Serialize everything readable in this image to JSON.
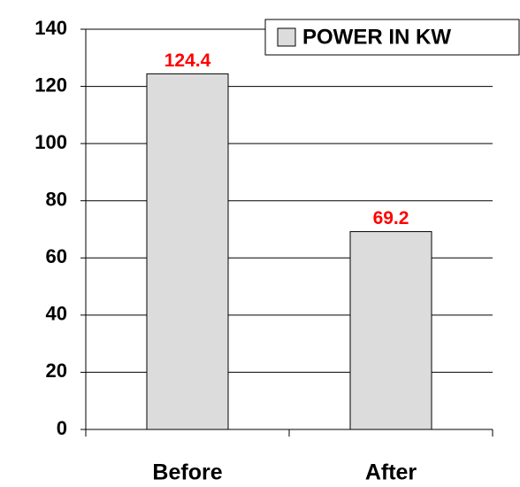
{
  "chart_data": {
    "type": "bar",
    "categories": [
      "Before",
      "After"
    ],
    "series": [
      {
        "name": "POWER IN KW",
        "color": "#dcdcdc",
        "values": [
          124.4,
          69.2
        ]
      }
    ],
    "ylim": [
      0,
      140
    ],
    "yticks": [
      0,
      20,
      40,
      60,
      80,
      100,
      120,
      140
    ],
    "grid": true,
    "legend": "upper right",
    "value_label_color": "#ff0000"
  }
}
